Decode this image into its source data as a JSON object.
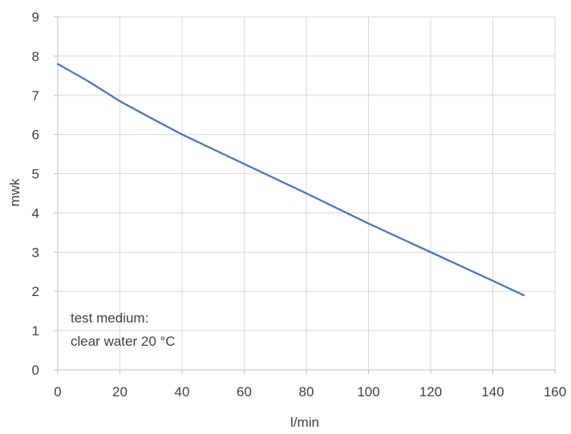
{
  "chart_data": {
    "type": "line",
    "title": "",
    "xlabel": "l/min",
    "ylabel": "mwk",
    "xlim": [
      0,
      160
    ],
    "ylim": [
      0,
      9
    ],
    "xticks": [
      0,
      20,
      40,
      60,
      80,
      100,
      120,
      140,
      160
    ],
    "yticks": [
      0,
      1,
      2,
      3,
      4,
      5,
      6,
      7,
      8,
      9
    ],
    "grid": true,
    "legend": "none",
    "series": [
      {
        "color": "#4472c4",
        "x": [
          0,
          10,
          20,
          30,
          40,
          60,
          80,
          100,
          120,
          140,
          150
        ],
        "y": [
          7.8,
          7.35,
          6.85,
          6.42,
          6.0,
          5.25,
          4.5,
          3.73,
          3.0,
          2.27,
          1.9
        ]
      }
    ],
    "annotation": {
      "lines": [
        "test medium:",
        "clear water 20 °C"
      ]
    }
  }
}
